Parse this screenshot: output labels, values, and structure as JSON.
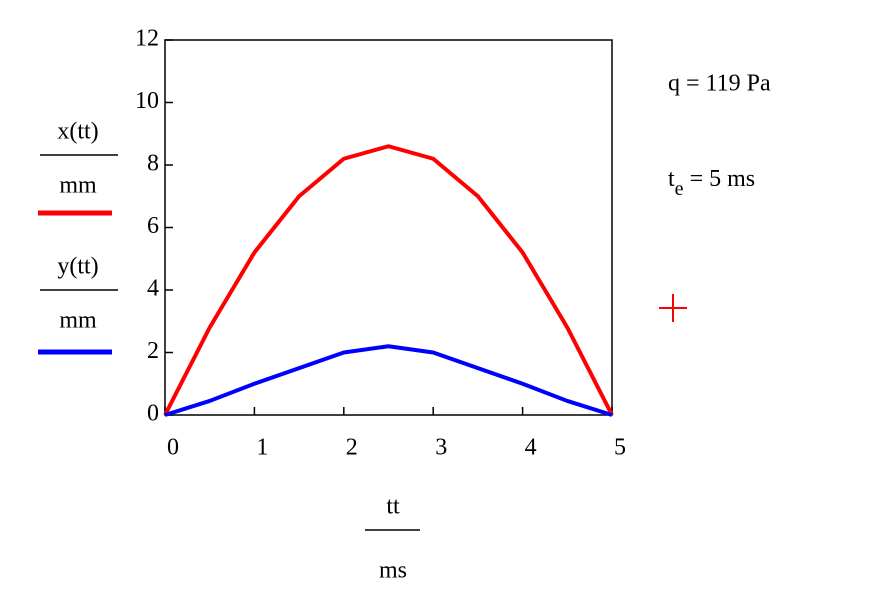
{
  "chart_data": {
    "type": "line",
    "x": [
      0,
      0.5,
      1,
      1.5,
      2,
      2.5,
      3,
      3.5,
      4,
      4.5,
      5
    ],
    "series": [
      {
        "name": "x(tt)",
        "color": "#ff0000",
        "values": [
          0,
          2.8,
          5.2,
          7.0,
          8.2,
          8.6,
          8.2,
          7.0,
          5.2,
          2.8,
          0
        ]
      },
      {
        "name": "y(tt)",
        "color": "#0000ff",
        "values": [
          0,
          0.45,
          1.0,
          1.5,
          2.0,
          2.2,
          2.0,
          1.5,
          1.0,
          0.45,
          0
        ]
      }
    ],
    "ylabel_unit": "mm",
    "xlabel": "tt",
    "xlabel_unit": "ms",
    "xlim": [
      0,
      5
    ],
    "xticks": [
      0,
      1,
      2,
      3,
      4,
      5
    ],
    "ylim": [
      0,
      12
    ],
    "yticks": [
      0,
      2,
      4,
      6,
      8,
      10,
      12
    ],
    "annotations": [
      {
        "text": "q = 119 Pa"
      },
      {
        "symbol": "t",
        "subscript": "e",
        "text": "= 5 ms"
      }
    ]
  }
}
